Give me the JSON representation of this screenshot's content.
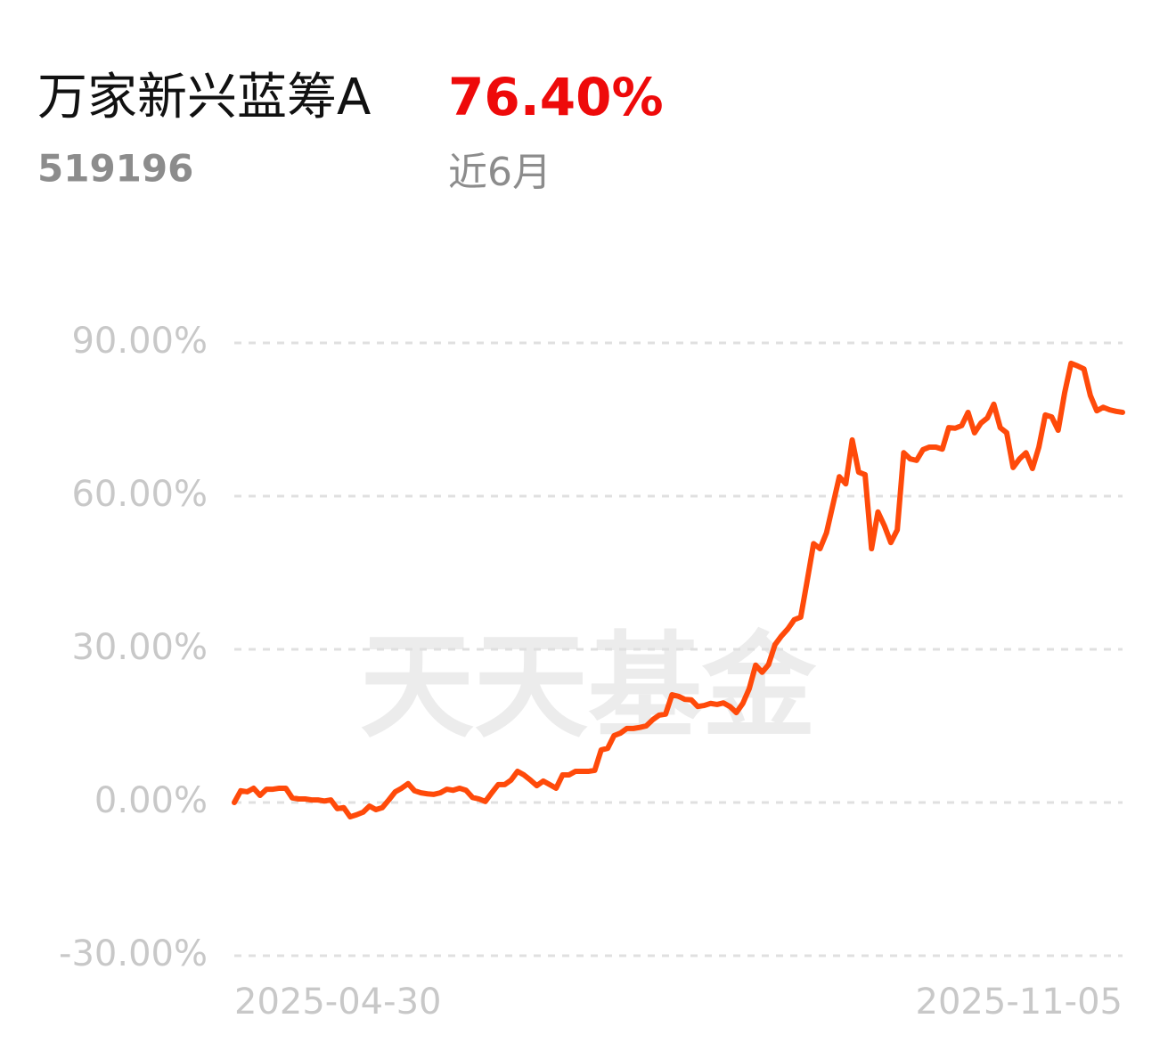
{
  "header": {
    "name": "万家新兴蓝筹A",
    "return": "76.40%",
    "code": "519196",
    "period": "近6月"
  },
  "chart_data": {
    "type": "line",
    "watermark": "天天基金",
    "categories": [
      "2025-04-30",
      null,
      null,
      null,
      null,
      null,
      null,
      null,
      null,
      null,
      null,
      null,
      null,
      null,
      null,
      null,
      null,
      null,
      null,
      null,
      null,
      null,
      null,
      null,
      null,
      null,
      null,
      null,
      null,
      null,
      null,
      null,
      null,
      null,
      null,
      null,
      null,
      null,
      null,
      null,
      null,
      null,
      null,
      null,
      null,
      null,
      null,
      null,
      null,
      null,
      null,
      null,
      null,
      null,
      null,
      null,
      null,
      null,
      null,
      null,
      null,
      null,
      null,
      null,
      null,
      null,
      null,
      null,
      null,
      null,
      null,
      null,
      null,
      null,
      null,
      null,
      null,
      null,
      null,
      null,
      null,
      null,
      null,
      null,
      null,
      null,
      null,
      null,
      null,
      null,
      null,
      null,
      null,
      null,
      null,
      null,
      null,
      null,
      null,
      null,
      null,
      null,
      null,
      null,
      null,
      null,
      null,
      null,
      null,
      null,
      null,
      null,
      null,
      null,
      null,
      null,
      null,
      null,
      null,
      null,
      null,
      null,
      null,
      null,
      null,
      null,
      null,
      null,
      null,
      null,
      null,
      null,
      null,
      null,
      null,
      null,
      null,
      null,
      "2025-11-05"
    ],
    "values": [
      0,
      2.3,
      2.1,
      2.8,
      1.4,
      2.6,
      2.6,
      2.8,
      2.8,
      0.9,
      0.7,
      0.7,
      0.5,
      0.5,
      0.3,
      0.5,
      -1.2,
      -1.0,
      -2.8,
      -2.4,
      -1.9,
      -0.7,
      -1.4,
      -1.0,
      0.5,
      2.1,
      2.8,
      3.7,
      2.3,
      1.9,
      1.7,
      1.6,
      1.9,
      2.6,
      2.4,
      2.8,
      2.4,
      1.0,
      0.7,
      0.2,
      1.9,
      3.5,
      3.5,
      4.4,
      6.1,
      5.4,
      4.4,
      3.3,
      4.2,
      3.5,
      2.8,
      5.4,
      5.4,
      6.1,
      6.1,
      6.1,
      6.3,
      10.3,
      10.6,
      13.1,
      13.6,
      14.5,
      14.5,
      14.7,
      15.0,
      16.2,
      17.1,
      17.3,
      21.1,
      20.8,
      20.2,
      20.1,
      18.8,
      19.0,
      19.4,
      19.2,
      19.5,
      18.8,
      17.6,
      19.4,
      22.3,
      26.9,
      25.5,
      27.0,
      30.9,
      32.6,
      34.0,
      35.8,
      36.3,
      43.4,
      50.7,
      49.7,
      52.8,
      58.3,
      63.8,
      62.4,
      71.0,
      64.7,
      64.2,
      49.7,
      56.9,
      54.2,
      50.9,
      53.4,
      68.5,
      67.3,
      67.0,
      69.1,
      69.6,
      69.6,
      69.2,
      73.4,
      73.3,
      73.8,
      76.4,
      72.4,
      74.3,
      75.3,
      78.0,
      73.4,
      72.4,
      65.6,
      67.3,
      68.5,
      65.4,
      69.6,
      75.9,
      75.5,
      72.9,
      80.2,
      86.0,
      85.5,
      84.9,
      79.7,
      76.7,
      77.4,
      76.9,
      76.6,
      76.4
    ],
    "color": "#ff4a0a",
    "ylim": [
      -30,
      90
    ],
    "yticks": [
      {
        "value": -30,
        "label": "-30.00%"
      },
      {
        "value": 0,
        "label": "0.00%"
      },
      {
        "value": 30,
        "label": "30.00%"
      },
      {
        "value": 60,
        "label": "60.00%"
      },
      {
        "value": 90,
        "label": "90.00%"
      }
    ],
    "grid": true
  }
}
